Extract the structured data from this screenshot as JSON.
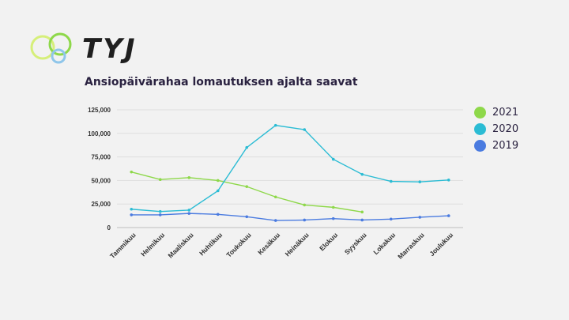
{
  "logo": {
    "text": "TYJ"
  },
  "chart_data": {
    "type": "line",
    "title": "Ansiopäivärahaa lomautuksen ajalta saavat",
    "xlabel": "",
    "ylabel": "",
    "categories": [
      "Tammikuu",
      "Helmikuu",
      "Maaliskuu",
      "Huhtikuu",
      "Toukokuu",
      "Kesäkuu",
      "Heinäkuu",
      "Elokuu",
      "Syyskuu",
      "Lokakuu",
      "Marraskuu",
      "Joulukuu"
    ],
    "ylim": [
      0,
      125000
    ],
    "yticks": [
      0,
      25000,
      50000,
      75000,
      100000,
      125000
    ],
    "ytick_labels": [
      "0",
      "25,000",
      "50,000",
      "75,000",
      "100,000",
      "125,000"
    ],
    "grid": true,
    "legend_position": "right",
    "series": [
      {
        "name": "2021",
        "color": "#8ed84a",
        "values": [
          59000,
          51000,
          53000,
          50000,
          43500,
          32500,
          24000,
          21500,
          16500,
          null,
          null,
          null
        ]
      },
      {
        "name": "2020",
        "color": "#2bbcd4",
        "values": [
          19500,
          17000,
          18500,
          39000,
          85000,
          108500,
          104000,
          72500,
          56500,
          49000,
          48500,
          50500
        ]
      },
      {
        "name": "2019",
        "color": "#4a7be0",
        "values": [
          13500,
          13500,
          15000,
          14000,
          11500,
          7500,
          8000,
          9500,
          8000,
          9000,
          11000,
          12500
        ]
      }
    ]
  }
}
